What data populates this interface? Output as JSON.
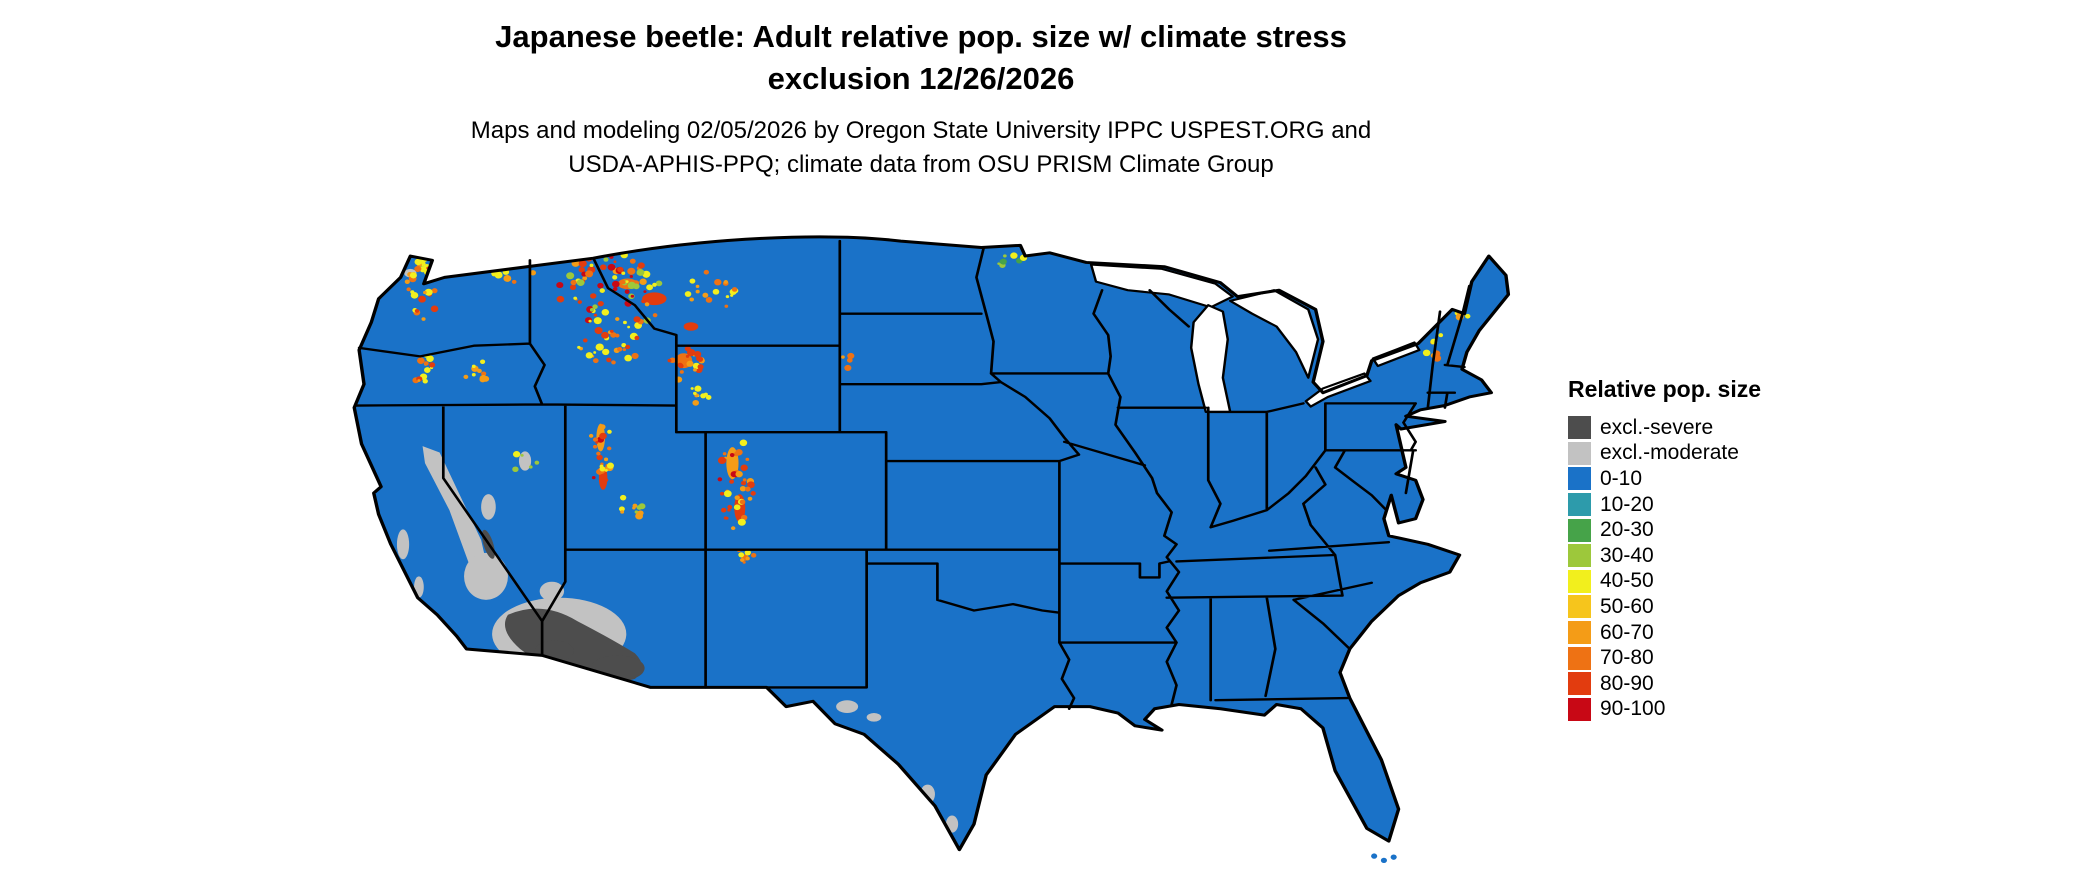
{
  "figure": {
    "title_line1": "Japanese beetle: Adult relative pop. size w/ climate stress",
    "title_line2": "exclusion 12/26/2026",
    "subtitle_line1": "Maps and modeling 02/05/2026 by Oregon State University IPPC USPEST.ORG and",
    "subtitle_line2": "USDA-APHIS-PPQ; climate data from OSU PRISM Climate Group"
  },
  "legend": {
    "title": "Relative pop. size",
    "items": [
      {
        "label": "excl.-severe",
        "color": "#4d4d4d"
      },
      {
        "label": "excl.-moderate",
        "color": "#c2c2c2"
      },
      {
        "label": "0-10",
        "color": "#1a72c8"
      },
      {
        "label": "10-20",
        "color": "#2d9bab"
      },
      {
        "label": "20-30",
        "color": "#46a349"
      },
      {
        "label": "30-40",
        "color": "#9dc83b"
      },
      {
        "label": "40-50",
        "color": "#f2ef1d"
      },
      {
        "label": "50-60",
        "color": "#f6c51c"
      },
      {
        "label": "60-70",
        "color": "#f49c17"
      },
      {
        "label": "70-80",
        "color": "#ee7214"
      },
      {
        "label": "80-90",
        "color": "#e23c0f"
      },
      {
        "label": "90-100",
        "color": "#c80815"
      }
    ]
  },
  "map": {
    "region": "conterminous United States",
    "border_color": "#000000",
    "water_color": "#ffffff",
    "base_fill_legend_label": "0-10"
  }
}
